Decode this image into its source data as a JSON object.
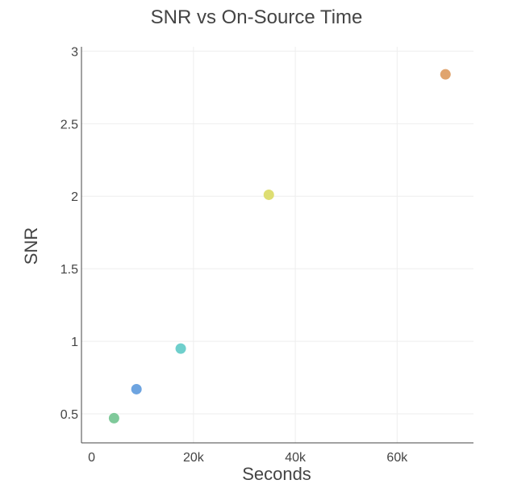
{
  "chart_data": {
    "type": "scatter",
    "title": "SNR vs On-Source Time",
    "xlabel": "Seconds",
    "ylabel": "SNR",
    "xlim": [
      -2000,
      75000
    ],
    "ylim": [
      0.3,
      3.03
    ],
    "x_ticks": [
      {
        "value": 0,
        "label": "0"
      },
      {
        "value": 20000,
        "label": "20k"
      },
      {
        "value": 40000,
        "label": "40k"
      },
      {
        "value": 60000,
        "label": "60k"
      }
    ],
    "y_ticks": [
      {
        "value": 0.5,
        "label": "0.5"
      },
      {
        "value": 1,
        "label": "1"
      },
      {
        "value": 1.5,
        "label": "1.5"
      },
      {
        "value": 2,
        "label": "2"
      },
      {
        "value": 2.5,
        "label": "2.5"
      },
      {
        "value": 3,
        "label": "3"
      }
    ],
    "grid": true,
    "points": [
      {
        "x": 4400,
        "y": 0.47,
        "color": "#7fc99a"
      },
      {
        "x": 8800,
        "y": 0.67,
        "color": "#6ea4e0"
      },
      {
        "x": 17500,
        "y": 0.95,
        "color": "#6fcfcc"
      },
      {
        "x": 34800,
        "y": 2.01,
        "color": "#dede73"
      },
      {
        "x": 69500,
        "y": 2.84,
        "color": "#e0a46e"
      }
    ]
  }
}
